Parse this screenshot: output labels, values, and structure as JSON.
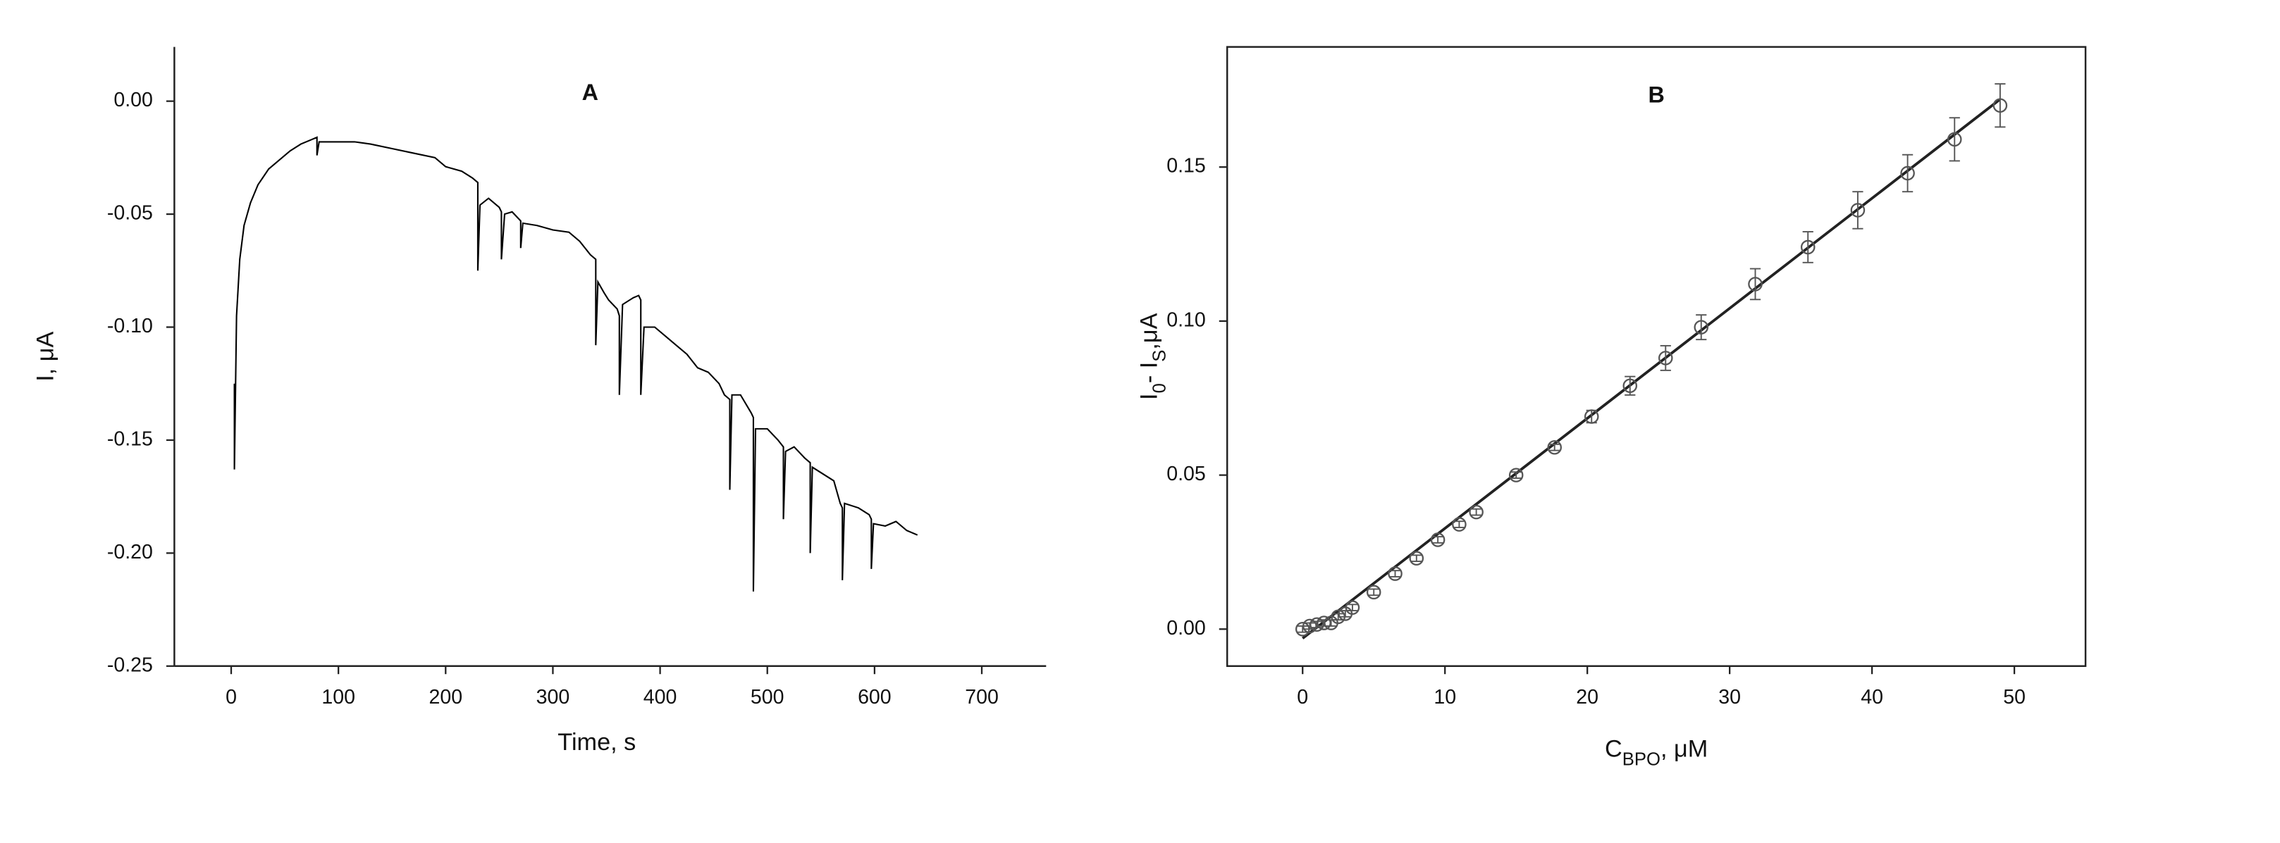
{
  "chart_data": [
    {
      "type": "line",
      "title": "A",
      "xlabel": "Time, s",
      "ylabel": "I, μA",
      "color": "#000000",
      "xlim": [
        -53,
        760
      ],
      "ylim": [
        -0.25,
        0.024
      ],
      "xticks": [
        0,
        100,
        200,
        300,
        400,
        500,
        600,
        700
      ],
      "yticks": [
        {
          "value": 0,
          "label": "0.00"
        },
        -0.05,
        {
          "value": -0.1,
          "label": "-0.10"
        },
        -0.15,
        {
          "value": -0.2,
          "label": "-0.20"
        },
        -0.25
      ],
      "x": [
        3,
        3,
        5,
        8,
        12,
        18,
        25,
        35,
        45,
        55,
        65,
        75,
        80,
        80,
        82,
        90,
        100,
        115,
        130,
        150,
        170,
        190,
        200,
        215,
        225,
        230,
        230,
        232,
        240,
        250,
        252,
        252,
        255,
        262,
        270,
        270,
        272,
        285,
        300,
        315,
        325,
        335,
        340,
        340,
        342,
        348,
        352,
        360,
        362,
        362,
        365,
        375,
        380,
        382,
        382,
        385,
        395,
        405,
        415,
        425,
        435,
        445,
        455,
        460,
        465,
        465,
        467,
        475,
        485,
        487,
        487,
        489,
        500,
        510,
        515,
        515,
        517,
        525,
        535,
        540,
        540,
        542,
        552,
        562,
        568,
        570,
        570,
        572,
        585,
        595,
        597,
        597,
        599,
        610,
        620,
        630,
        640
      ],
      "values": [
        -0.125,
        -0.163,
        -0.095,
        -0.07,
        -0.055,
        -0.045,
        -0.037,
        -0.03,
        -0.026,
        -0.022,
        -0.019,
        -0.017,
        -0.016,
        -0.024,
        -0.018,
        -0.018,
        -0.018,
        -0.018,
        -0.019,
        -0.021,
        -0.023,
        -0.025,
        -0.029,
        -0.031,
        -0.034,
        -0.036,
        -0.075,
        -0.046,
        -0.043,
        -0.047,
        -0.049,
        -0.07,
        -0.05,
        -0.049,
        -0.053,
        -0.065,
        -0.054,
        -0.055,
        -0.057,
        -0.058,
        -0.062,
        -0.068,
        -0.07,
        -0.108,
        -0.08,
        -0.085,
        -0.088,
        -0.092,
        -0.095,
        -0.13,
        -0.09,
        -0.087,
        -0.086,
        -0.088,
        -0.13,
        -0.1,
        -0.1,
        -0.104,
        -0.108,
        -0.112,
        -0.118,
        -0.12,
        -0.125,
        -0.13,
        -0.132,
        -0.172,
        -0.13,
        -0.13,
        -0.138,
        -0.14,
        -0.217,
        -0.145,
        -0.145,
        -0.15,
        -0.153,
        -0.185,
        -0.155,
        -0.153,
        -0.158,
        -0.16,
        -0.2,
        -0.162,
        -0.165,
        -0.168,
        -0.178,
        -0.18,
        -0.212,
        -0.178,
        -0.18,
        -0.183,
        -0.185,
        -0.207,
        -0.187,
        -0.188,
        -0.186,
        -0.19,
        -0.192
      ]
    },
    {
      "type": "scatter",
      "title": "B",
      "xlabel": [
        {
          "text": "C"
        },
        {
          "text": "BPO",
          "sub": true
        },
        {
          "text": ", μM"
        }
      ],
      "ylabel": [
        {
          "text": "I"
        },
        {
          "text": "0",
          "sub": true
        },
        {
          "text": "- I"
        },
        {
          "text": "S",
          "sub": true
        },
        {
          "text": ",μA"
        }
      ],
      "color": "#555555",
      "fit_color": "#222222",
      "xlim": [
        -5.3,
        55
      ],
      "ylim": [
        -0.012,
        0.189
      ],
      "xticks": [
        0,
        10,
        20,
        30,
        40,
        50
      ],
      "yticks": [
        {
          "value": 0,
          "label": "0.00"
        },
        0.05,
        {
          "value": 0.1,
          "label": "0.10"
        },
        0.15
      ],
      "x": [
        0,
        0.5,
        1,
        1.5,
        2,
        2.5,
        3,
        3.5,
        5,
        6.5,
        8,
        9.5,
        11,
        12.2,
        15,
        17.7,
        20.3,
        23,
        25.5,
        28,
        31.8,
        35.5,
        39,
        42.5,
        45.8,
        49
      ],
      "values": [
        0,
        0.001,
        0.0015,
        0.002,
        0.002,
        0.004,
        0.005,
        0.007,
        0.012,
        0.018,
        0.023,
        0.029,
        0.034,
        0.038,
        0.05,
        0.059,
        0.069,
        0.079,
        0.088,
        0.098,
        0.112,
        0.124,
        0.136,
        0.148,
        0.159,
        0.17
      ],
      "errors": [
        0.001,
        0.001,
        0.001,
        0.001,
        0.001,
        0.001,
        0.001,
        0.001,
        0.001,
        0.001,
        0.001,
        0.001,
        0.001,
        0.001,
        0.001,
        0.001,
        0.002,
        0.003,
        0.004,
        0.004,
        0.005,
        0.005,
        0.006,
        0.006,
        0.007,
        0.007
      ],
      "fit": {
        "x": [
          0,
          49
        ],
        "values": [
          -0.003,
          0.172
        ]
      }
    }
  ]
}
